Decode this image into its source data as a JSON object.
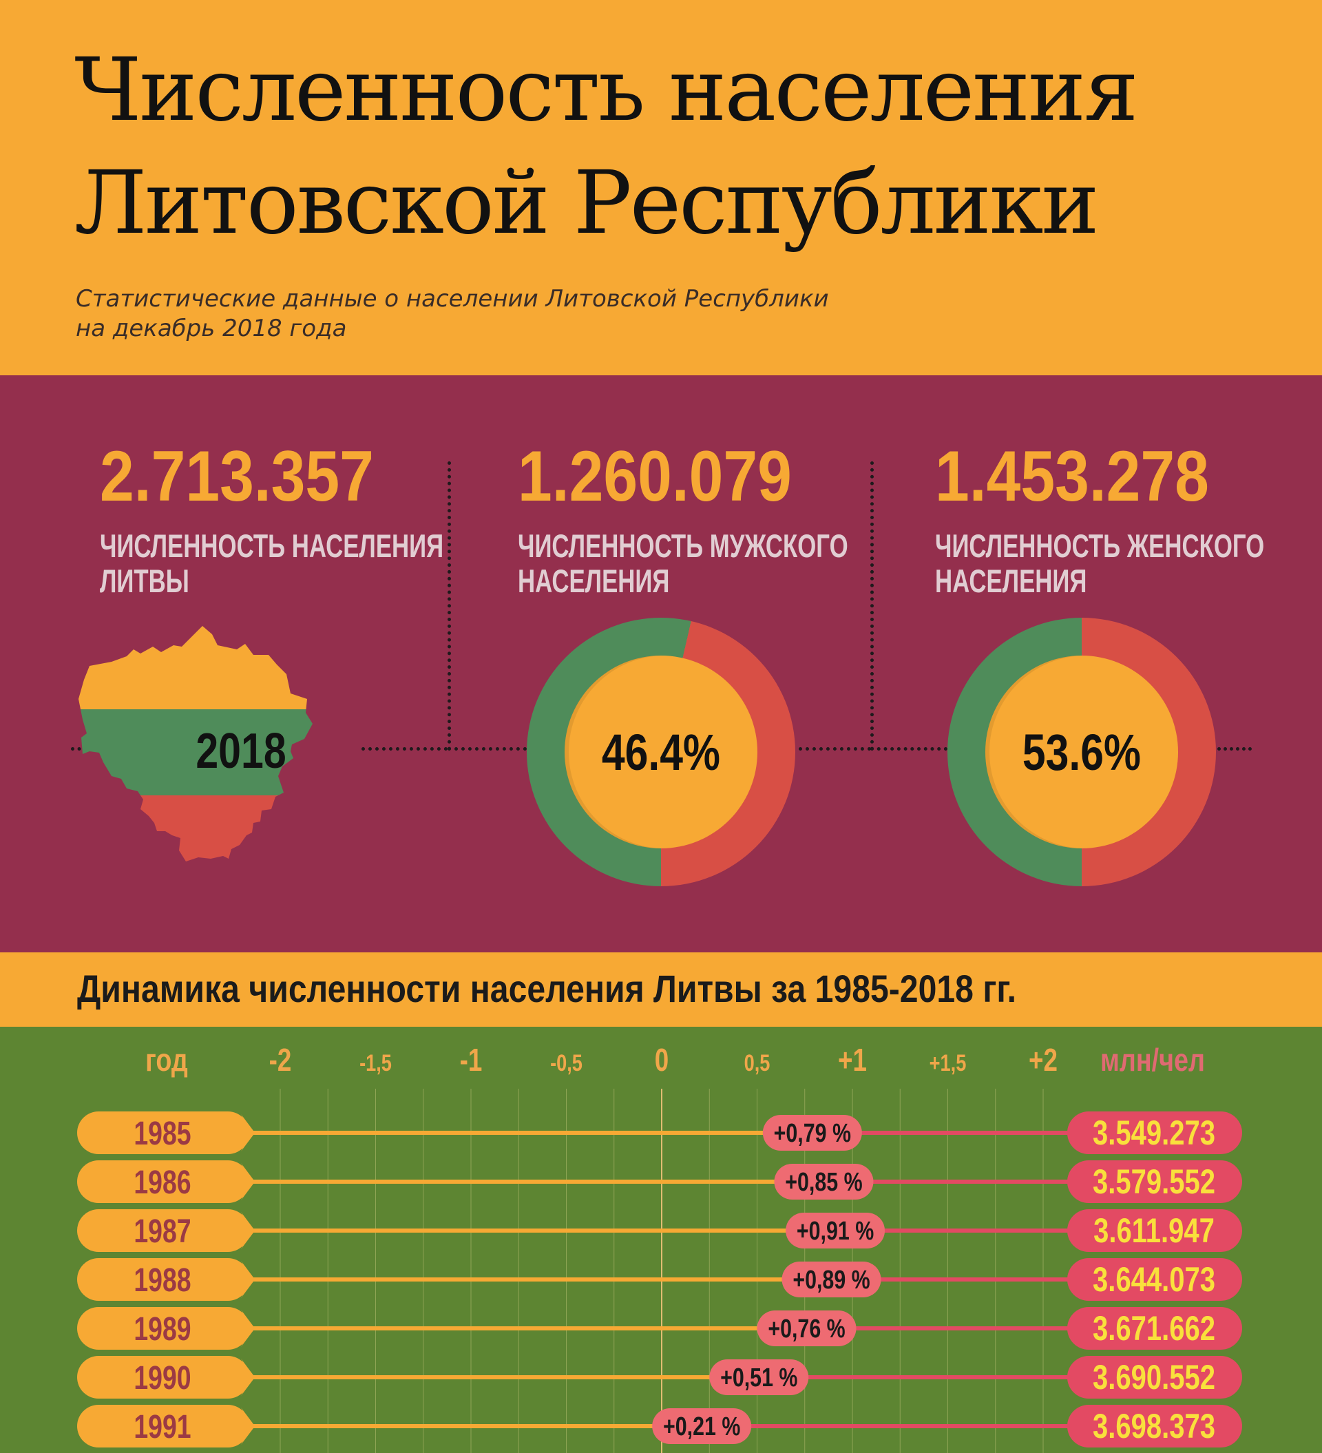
{
  "header": {
    "title_line1": "Численность населения",
    "title_line2": "Литовской Республики",
    "subtitle_line1": "Статистические данные о населении Литовской Республики",
    "subtitle_line2": "на декабрь 2018 года"
  },
  "stats": {
    "total": {
      "value": "2.713.357",
      "label_line1": "ЧИСЛЕННОСТЬ НАСЕЛЕНИЯ",
      "label_line2": "ЛИТВЫ",
      "year": "2018"
    },
    "male": {
      "value": "1.260.079",
      "label_line1": "ЧИСЛЕННОСТЬ МУЖСКОГО",
      "label_line2": "НАСЕЛЕНИЯ",
      "percent": "46.4%",
      "share": 0.464
    },
    "female": {
      "value": "1.453.278",
      "label_line1": "ЧИСЛЕННОСТЬ ЖЕНСКОГО",
      "label_line2": "НАСЕЛЕНИЯ",
      "percent": "53.6%",
      "share": 0.536
    }
  },
  "section_title": "Динамика численности населения Литвы за 1985-2018 гг.",
  "colors": {
    "flag_yellow": "#f7a934",
    "flag_green": "#4f8c5a",
    "flag_red": "#d84f45",
    "maroon": "#942f4d",
    "chart_green": "#5d8532",
    "pill_pink": "#e34a63",
    "growth_badge": "#ee6b72"
  },
  "chart_data": {
    "type": "bar",
    "title": "Динамика численности населения Литвы за 1985-2018 гг.",
    "xlabel": "год",
    "ylabel": "млн/чел",
    "axis_ticks": [
      {
        "value": -2,
        "label": "-2"
      },
      {
        "value": -1.5,
        "label": "-1,5"
      },
      {
        "value": -1,
        "label": "-1"
      },
      {
        "value": -0.5,
        "label": "-0,5"
      },
      {
        "value": 0,
        "label": "0"
      },
      {
        "value": 0.5,
        "label": "0,5"
      },
      {
        "value": 1,
        "label": "+1"
      },
      {
        "value": 1.5,
        "label": "+1,5"
      },
      {
        "value": 2,
        "label": "+2"
      }
    ],
    "xlim": [
      -2,
      2
    ],
    "rows": [
      {
        "year": "1985",
        "change": 0.79,
        "change_label": "+0,79 %",
        "population": "3.549.273"
      },
      {
        "year": "1986",
        "change": 0.85,
        "change_label": "+0,85 %",
        "population": "3.579.552"
      },
      {
        "year": "1987",
        "change": 0.91,
        "change_label": "+0,91 %",
        "population": "3.611.947"
      },
      {
        "year": "1988",
        "change": 0.89,
        "change_label": "+0,89 %",
        "population": "3.644.073"
      },
      {
        "year": "1989",
        "change": 0.76,
        "change_label": "+0,76 %",
        "population": "3.671.662"
      },
      {
        "year": "1990",
        "change": 0.51,
        "change_label": "+0,51 %",
        "population": "3.690.552"
      },
      {
        "year": "1991",
        "change": 0.21,
        "change_label": "+0,21 %",
        "population": "3.698.373"
      }
    ]
  }
}
